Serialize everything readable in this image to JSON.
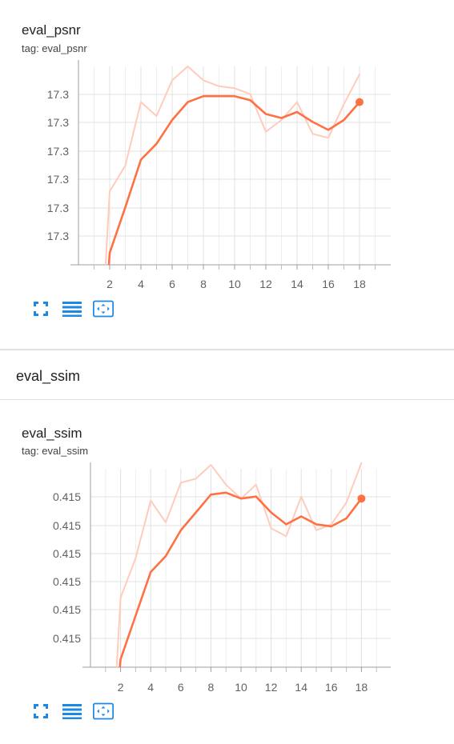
{
  "accent_color": "#ff7043",
  "raw_line_color": "#ffccbc",
  "icons": [
    "expand-icon",
    "data-table-icon",
    "fit-domain-icon"
  ],
  "section": {
    "title": "eval_ssim"
  },
  "charts": [
    {
      "title": "eval_psnr",
      "tag": "tag: eval_psnr",
      "x_ticks": [
        "2",
        "4",
        "6",
        "8",
        "10",
        "12",
        "14",
        "16",
        "18"
      ],
      "y_ticks": [
        "17.3",
        "17.3",
        "17.3",
        "17.3",
        "17.3",
        "17.3"
      ]
    },
    {
      "title": "eval_ssim",
      "tag": "tag: eval_ssim",
      "x_ticks": [
        "2",
        "4",
        "6",
        "8",
        "10",
        "12",
        "14",
        "16",
        "18"
      ],
      "y_ticks": [
        "0.415",
        "0.415",
        "0.415",
        "0.415",
        "0.415",
        "0.415"
      ]
    }
  ],
  "chart_data": [
    {
      "type": "line",
      "title": "eval_psnr",
      "xlabel": "",
      "ylabel": "",
      "xlim": [
        0,
        20
      ],
      "x_ticks": [
        2,
        4,
        6,
        8,
        10,
        12,
        14,
        16,
        18
      ],
      "y_tick_labels": [
        "17.3",
        "17.3",
        "17.3",
        "17.3",
        "17.3",
        "17.3"
      ],
      "ylim_relative": [
        0,
        1
      ],
      "grid": true,
      "series": [
        {
          "style": "raw",
          "x": [
            1.7,
            2,
            3,
            4,
            5,
            6,
            7,
            8,
            9,
            10,
            11,
            12,
            13,
            14,
            15,
            16,
            17,
            18
          ],
          "y": [
            -0.05,
            0.37,
            0.5,
            0.82,
            0.75,
            0.93,
            1.0,
            0.93,
            0.9,
            0.89,
            0.86,
            0.67,
            0.73,
            0.82,
            0.66,
            0.64,
            0.81,
            0.96
          ]
        },
        {
          "style": "smoothed",
          "x": [
            1.95,
            2,
            3,
            4,
            5,
            6,
            7,
            8,
            9,
            10,
            11,
            12,
            13,
            14,
            15,
            16,
            17,
            18
          ],
          "y": [
            0.0,
            0.06,
            0.29,
            0.53,
            0.61,
            0.73,
            0.82,
            0.85,
            0.85,
            0.85,
            0.83,
            0.76,
            0.74,
            0.77,
            0.72,
            0.68,
            0.73,
            0.82
          ]
        }
      ]
    },
    {
      "type": "line",
      "title": "eval_ssim",
      "xlabel": "",
      "ylabel": "",
      "xlim": [
        0,
        20
      ],
      "x_ticks": [
        2,
        4,
        6,
        8,
        10,
        12,
        14,
        16,
        18
      ],
      "y_tick_labels": [
        "0.415",
        "0.415",
        "0.415",
        "0.415",
        "0.415",
        "0.415"
      ],
      "ylim_relative": [
        0,
        1
      ],
      "grid": true,
      "series": [
        {
          "style": "raw",
          "x": [
            1.7,
            2,
            3,
            4,
            5,
            6,
            7,
            8,
            9,
            10,
            11,
            12,
            13,
            14,
            15,
            16,
            17,
            18
          ],
          "y": [
            -0.05,
            0.35,
            0.55,
            0.84,
            0.73,
            0.93,
            0.95,
            1.02,
            0.92,
            0.85,
            0.92,
            0.7,
            0.66,
            0.86,
            0.69,
            0.72,
            0.83,
            1.03
          ]
        },
        {
          "style": "smoothed",
          "x": [
            1.95,
            2,
            3,
            4,
            5,
            6,
            7,
            8,
            9,
            10,
            11,
            12,
            13,
            14,
            15,
            16,
            17,
            18
          ],
          "y": [
            0.0,
            0.04,
            0.26,
            0.48,
            0.56,
            0.69,
            0.78,
            0.87,
            0.88,
            0.85,
            0.86,
            0.78,
            0.72,
            0.76,
            0.72,
            0.71,
            0.75,
            0.85
          ]
        }
      ]
    }
  ]
}
